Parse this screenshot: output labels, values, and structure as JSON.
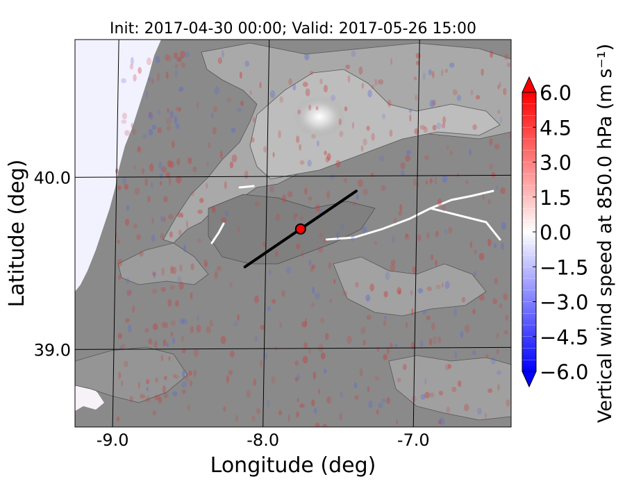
{
  "chart_data": {
    "type": "heatmap",
    "title": "Init: 2017-04-30 00:00; Valid: 2017-05-26 15:00",
    "xlabel": "Longitude (deg)",
    "ylabel": "Latitude (deg)",
    "x_ticks": [
      -9.0,
      -8.0,
      -7.0
    ],
    "x_tick_labels": [
      "-9.0",
      "-8.0",
      "-7.0"
    ],
    "y_ticks": [
      39.0,
      40.0
    ],
    "y_tick_labels": [
      "39.0",
      "40.0"
    ],
    "xlim": [
      -9.25,
      -6.35
    ],
    "ylim": [
      38.55,
      40.8
    ],
    "grid": true,
    "cross_section": {
      "start": [
        -8.12,
        39.48
      ],
      "end": [
        -7.38,
        39.92
      ]
    },
    "point": {
      "lon": -7.75,
      "lat": 39.7,
      "color": "#ff0000"
    },
    "colorbar": {
      "label": "Vertical wind speed at 850.0 hPa (m s⁻¹)",
      "min": -6.0,
      "max": 6.0,
      "tick_values": [
        6.0,
        4.5,
        3.0,
        1.5,
        0.0,
        -1.5,
        -3.0,
        -4.5,
        -6.0
      ],
      "tick_labels": [
        "6.0",
        "4.5",
        "3.0",
        "1.5",
        "0.0",
        "−1.5",
        "−3.0",
        "−4.5",
        "−6.0"
      ],
      "colors": {
        "low": "#0000ff",
        "mid": "#ffffff",
        "high": "#ff0000"
      }
    },
    "colors": {
      "ocean": "#f2f2ff",
      "terrain": "#8a8a8a",
      "highland": "#b8b8b8",
      "peak": "#e8e8e8",
      "line": "#000000"
    }
  }
}
